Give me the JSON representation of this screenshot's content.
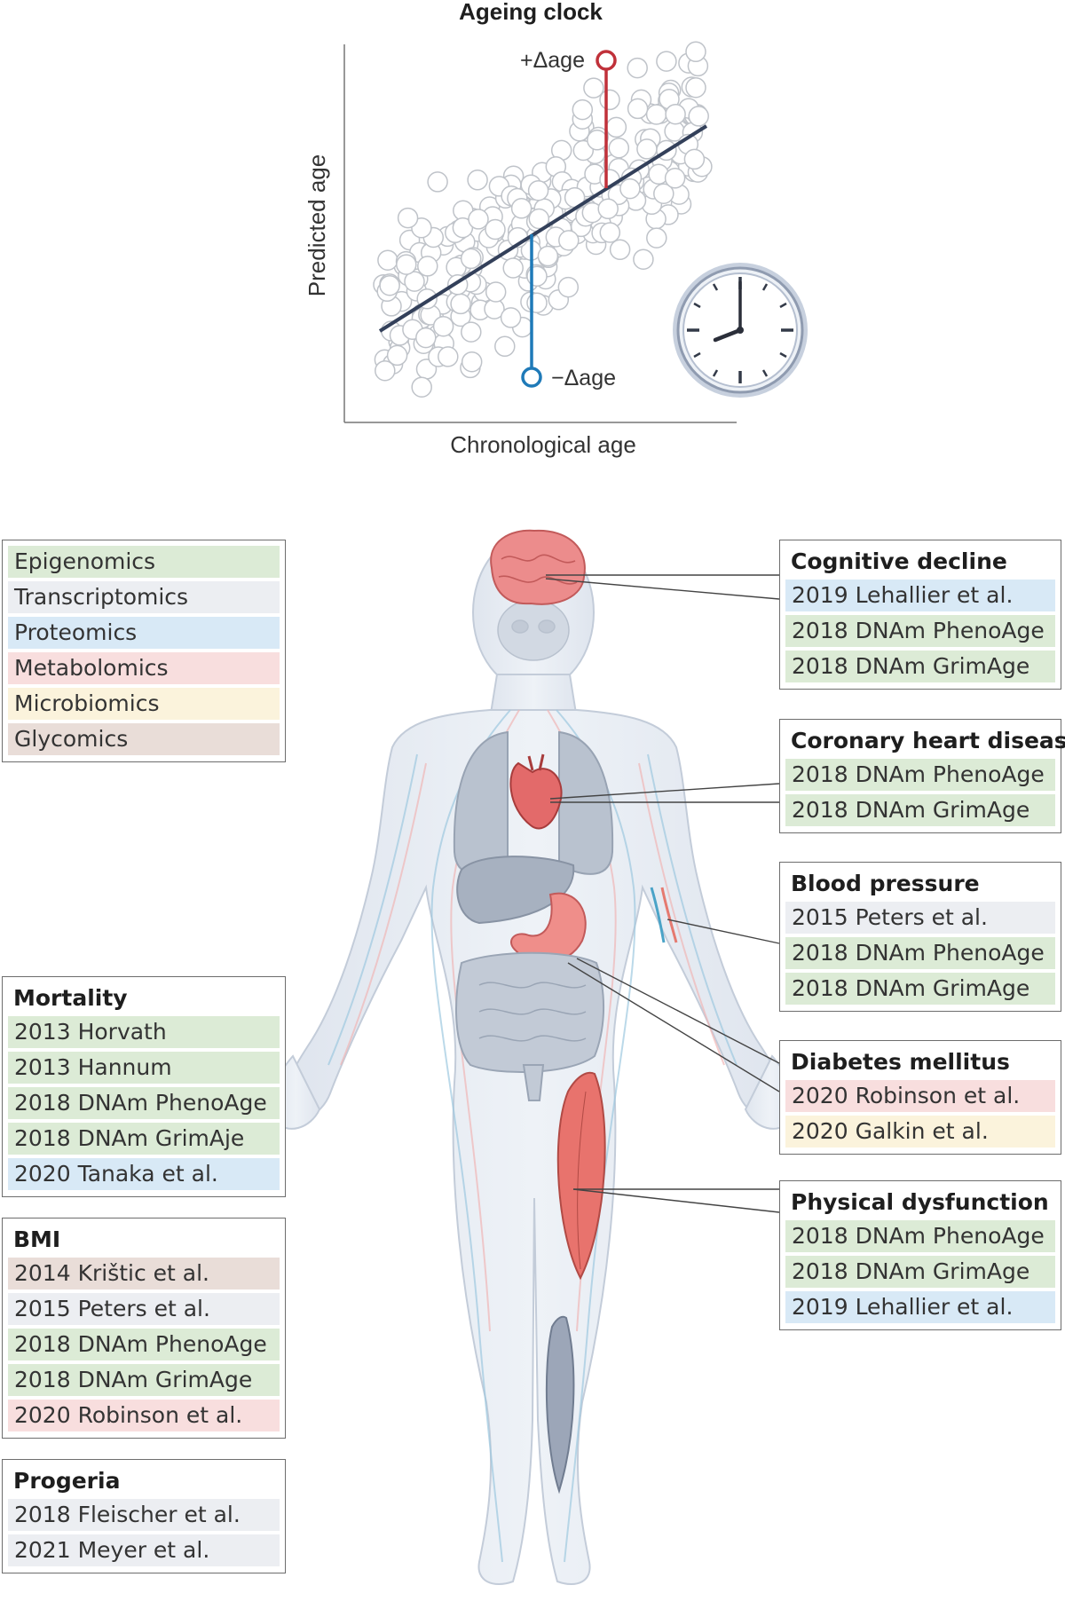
{
  "chart": {
    "title": "Ageing clock",
    "xlabel": "Chronological age",
    "ylabel": "Predicted age",
    "plus_label": "+Δage",
    "minus_label": "−Δage"
  },
  "colors": {
    "epigenomics": "#dcebd6",
    "transcriptomics": "#eceef2",
    "proteomics": "#d8e9f6",
    "metabolomics": "#f8dede",
    "microbiomics": "#fbf3dc",
    "glycomics": "#e9ddd8",
    "regression_line": "#33405a",
    "plus_delta": "#c0313a",
    "minus_delta": "#1f7ab8"
  },
  "legend": [
    {
      "label": "Epigenomics",
      "key": "epigenomics"
    },
    {
      "label": "Transcriptomics",
      "key": "transcriptomics"
    },
    {
      "label": "Proteomics",
      "key": "proteomics"
    },
    {
      "label": "Metabolomics",
      "key": "metabolomics"
    },
    {
      "label": "Microbiomics",
      "key": "microbiomics"
    },
    {
      "label": "Glycomics",
      "key": "glycomics"
    }
  ],
  "left_boxes": [
    {
      "title": "Mortality",
      "items": [
        {
          "label": "2013 Horvath",
          "key": "epigenomics"
        },
        {
          "label": "2013 Hannum",
          "key": "epigenomics"
        },
        {
          "label": "2018 DNAm PhenoAge",
          "key": "epigenomics"
        },
        {
          "label": "2018 DNAm GrimAje",
          "key": "epigenomics"
        },
        {
          "label": "2020 Tanaka et al.",
          "key": "proteomics"
        }
      ]
    },
    {
      "title": "BMI",
      "items": [
        {
          "label": "2014 Krištic et al.",
          "key": "glycomics"
        },
        {
          "label": "2015 Peters et al.",
          "key": "transcriptomics"
        },
        {
          "label": "2018 DNAm PhenoAge",
          "key": "epigenomics"
        },
        {
          "label": "2018 DNAm GrimAge",
          "key": "epigenomics"
        },
        {
          "label": "2020 Robinson et al.",
          "key": "metabolomics"
        }
      ]
    },
    {
      "title": "Progeria",
      "items": [
        {
          "label": "2018 Fleischer et al.",
          "key": "transcriptomics"
        },
        {
          "label": "2021 Meyer et al.",
          "key": "transcriptomics"
        }
      ]
    }
  ],
  "right_boxes": [
    {
      "title": "Cognitive decline",
      "items": [
        {
          "label": "2019 Lehallier et al.",
          "key": "proteomics"
        },
        {
          "label": "2018 DNAm PhenoAge",
          "key": "epigenomics"
        },
        {
          "label": "2018 DNAm GrimAge",
          "key": "epigenomics"
        }
      ]
    },
    {
      "title": "Coronary heart disease",
      "items": [
        {
          "label": "2018 DNAm PhenoAge",
          "key": "epigenomics"
        },
        {
          "label": "2018 DNAm GrimAge",
          "key": "epigenomics"
        }
      ]
    },
    {
      "title": "Blood pressure",
      "items": [
        {
          "label": "2015 Peters et al.",
          "key": "transcriptomics"
        },
        {
          "label": "2018 DNAm PhenoAge",
          "key": "epigenomics"
        },
        {
          "label": "2018 DNAm GrimAge",
          "key": "epigenomics"
        }
      ]
    },
    {
      "title": "Diabetes mellitus",
      "items": [
        {
          "label": "2020 Robinson et al.",
          "key": "metabolomics"
        },
        {
          "label": "2020 Galkin et al.",
          "key": "microbiomics"
        }
      ]
    },
    {
      "title": "Physical dysfunction",
      "items": [
        {
          "label": "2018 DNAm PhenoAge",
          "key": "epigenomics"
        },
        {
          "label": "2018 DNAm GrimAge",
          "key": "epigenomics"
        },
        {
          "label": "2019 Lehallier et al.",
          "key": "proteomics"
        }
      ]
    }
  ]
}
